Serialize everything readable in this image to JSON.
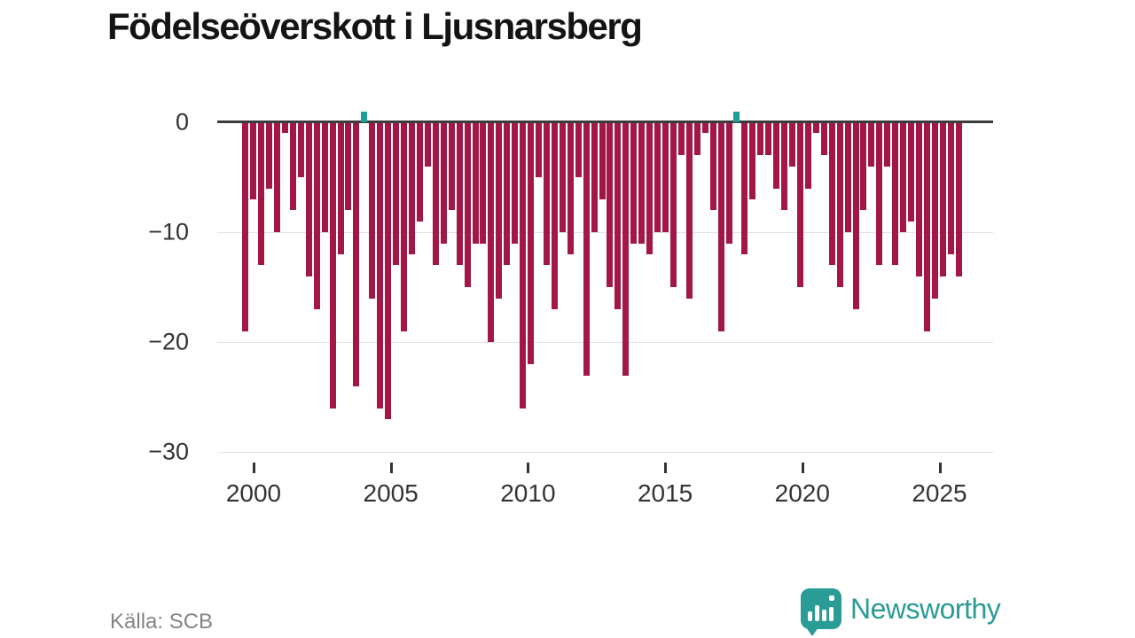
{
  "title": "Födelseöverskott i Ljusnarsberg",
  "source": "Källa: SCB",
  "branding": {
    "name": "Newsworthy",
    "logo_icon": "bar-chart-speech-bubble",
    "color": "#2a9b95"
  },
  "colors": {
    "negative_bar": "#a21747",
    "positive_bar": "#1f9e97",
    "zero_line": "#3b3b3b",
    "gridline": "#e2e2e2",
    "tick_text": "#333333",
    "title_text": "#141414",
    "source_text": "#848484"
  },
  "chart_data": {
    "type": "bar",
    "title": "Födelseöverskott i Ljusnarsberg",
    "xlabel": "",
    "ylabel": "",
    "x_start_year": 2000,
    "x_end_year": 2026,
    "periods_per_year_approx": 3.5,
    "x_tick_years": [
      "2000",
      "2005",
      "2010",
      "2015",
      "2020",
      "2025"
    ],
    "y_tick_labels": [
      "0",
      "−10",
      "−20",
      "−30"
    ],
    "y_tick_values": [
      0,
      -10,
      -20,
      -30
    ],
    "ylim": [
      -30,
      2
    ],
    "grid": "horizontal",
    "legend": "none",
    "values": [
      -19,
      -7,
      -13,
      -6,
      -10,
      -1,
      -8,
      -5,
      -14,
      -17,
      -10,
      -26,
      -12,
      -8,
      -24,
      1,
      -16,
      -26,
      -27,
      -13,
      -19,
      -12,
      -9,
      -4,
      -13,
      -11,
      -8,
      -13,
      -15,
      -11,
      -11,
      -20,
      -16,
      -13,
      -11,
      -26,
      -22,
      -5,
      -13,
      -17,
      -10,
      -12,
      -5,
      -23,
      -10,
      -7,
      -15,
      -17,
      -23,
      -11,
      -11,
      -12,
      -10,
      -10,
      -15,
      -3,
      -16,
      -3,
      -1,
      -8,
      -19,
      -11,
      1,
      -12,
      -7,
      -3,
      -3,
      -6,
      -8,
      -4,
      -15,
      -6,
      -1,
      -3,
      -13,
      -15,
      -10,
      -17,
      -8,
      -4,
      -13,
      -4,
      -13,
      -10,
      -9,
      -14,
      -19,
      -16,
      -14,
      -12,
      -14
    ],
    "positive_value_indices": [
      15,
      62
    ],
    "positive_value_color": "#1f9e97",
    "negative_value_color": "#a21747"
  }
}
